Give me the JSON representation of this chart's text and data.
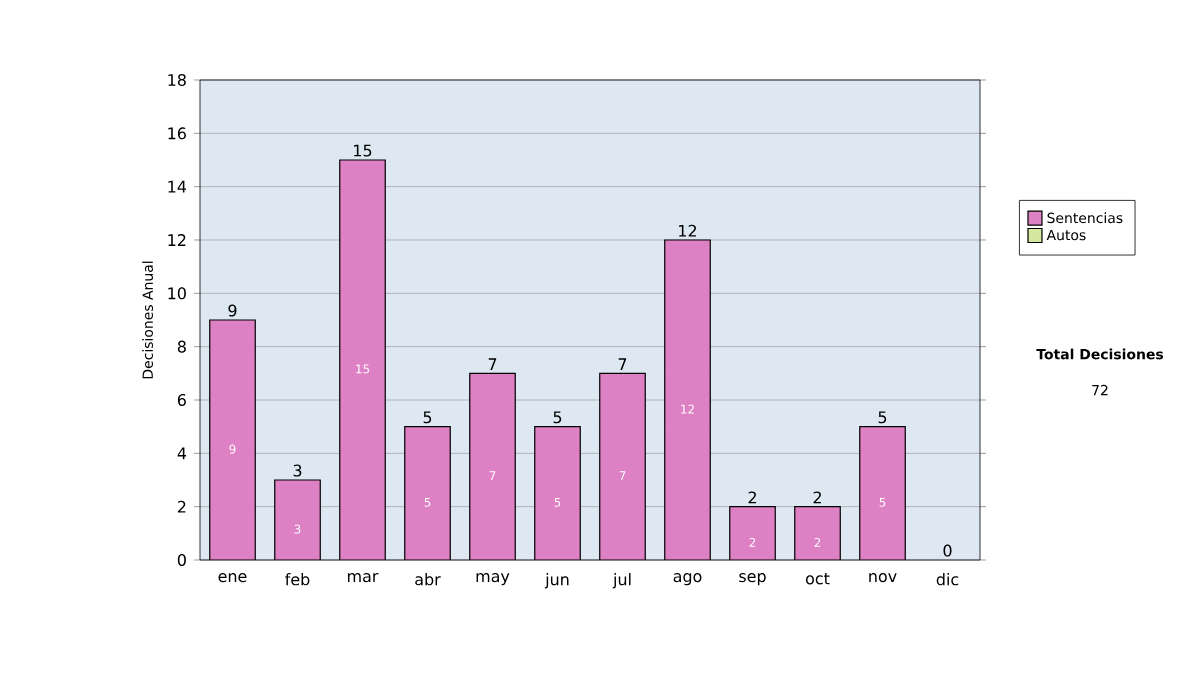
{
  "chart_data": {
    "type": "bar",
    "stacked": true,
    "ylabel": "Decisiones Anual",
    "categories": [
      "ene",
      "feb",
      "mar",
      "abr",
      "may",
      "jun",
      "jul",
      "ago",
      "sep",
      "oct",
      "nov",
      "dic"
    ],
    "series": [
      {
        "name": "Sentencias",
        "color": "#de80c4",
        "values": [
          9,
          3,
          15,
          5,
          7,
          5,
          7,
          12,
          2,
          2,
          5,
          0
        ],
        "value_labels": [
          "9",
          "3",
          "15",
          "5",
          "7",
          "5",
          "7",
          "12",
          "2",
          "2",
          "5",
          null
        ]
      },
      {
        "name": "Autos",
        "color": "#d4e8a0",
        "values": [
          0,
          0,
          0,
          0,
          0,
          0,
          0,
          0,
          0,
          0,
          0,
          0
        ]
      }
    ],
    "totals": [
      "9",
      "3",
      "15",
      "5",
      "7",
      "5",
      "7",
      "12",
      "2",
      "2",
      "5",
      "0"
    ],
    "ylim": [
      0,
      18
    ],
    "yticks": [
      0,
      2,
      4,
      6,
      8,
      10,
      12,
      14,
      16,
      18
    ],
    "grid": "y",
    "legend": "right",
    "annotations": [
      "Total Decisiones",
      "72"
    ]
  }
}
